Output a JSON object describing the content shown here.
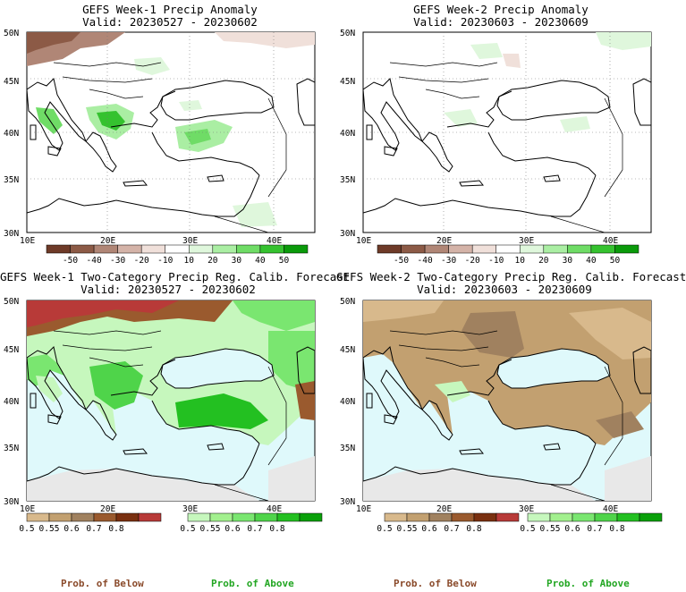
{
  "panels": [
    {
      "title": "GEFS Week-1 Precip Anomaly",
      "valid": "Valid: 20230527 - 20230602"
    },
    {
      "title": "GEFS Week-2 Precip Anomaly",
      "valid": "Valid: 20230603 - 20230609"
    },
    {
      "title": "GEFS Week-1 Two-Category Precip Reg. Calib. Forecast",
      "valid": "Valid: 20230527 - 20230602"
    },
    {
      "title": "GEFS Week-2 Two-Category Precip Reg. Calib. Forecast",
      "valid": "Valid: 20230603 - 20230609"
    }
  ],
  "axes": {
    "lat_labels": [
      "50N",
      "45N",
      "40N",
      "35N",
      "30N"
    ],
    "lon_labels": [
      "10E",
      "20E",
      "30E",
      "40E"
    ]
  },
  "anomaly_colorbar": {
    "labels": [
      "-50",
      "-40",
      "-30",
      "-20",
      "-10",
      "10",
      "20",
      "30",
      "40",
      "50"
    ],
    "colors": [
      "#6e3a28",
      "#8c5a46",
      "#b08676",
      "#d4b3a8",
      "#f0e0da",
      "#ffffff",
      "#dff7dc",
      "#aaeea3",
      "#6fdc66",
      "#35c22f",
      "#0a9a0a"
    ]
  },
  "below_colorbar": {
    "labels": [
      "0.5",
      "0.55",
      "0.6",
      "0.7",
      "0.8"
    ],
    "colors": [
      "#d8b98c",
      "#c2a070",
      "#a0815f",
      "#9a5a2e",
      "#7a3010",
      "#b83a38"
    ]
  },
  "above_colorbar": {
    "labels": [
      "0.5",
      "0.55",
      "0.6",
      "0.7",
      "0.8"
    ],
    "colors": [
      "#c6f7bd",
      "#a2f08e",
      "#7ae670",
      "#4fd44a",
      "#23c021",
      "#0aa00a"
    ]
  },
  "legend_captions": {
    "below": "Prob. of Below",
    "above": "Prob. of Above",
    "below_color": "#8a4a2a",
    "above_color": "#22a622"
  }
}
